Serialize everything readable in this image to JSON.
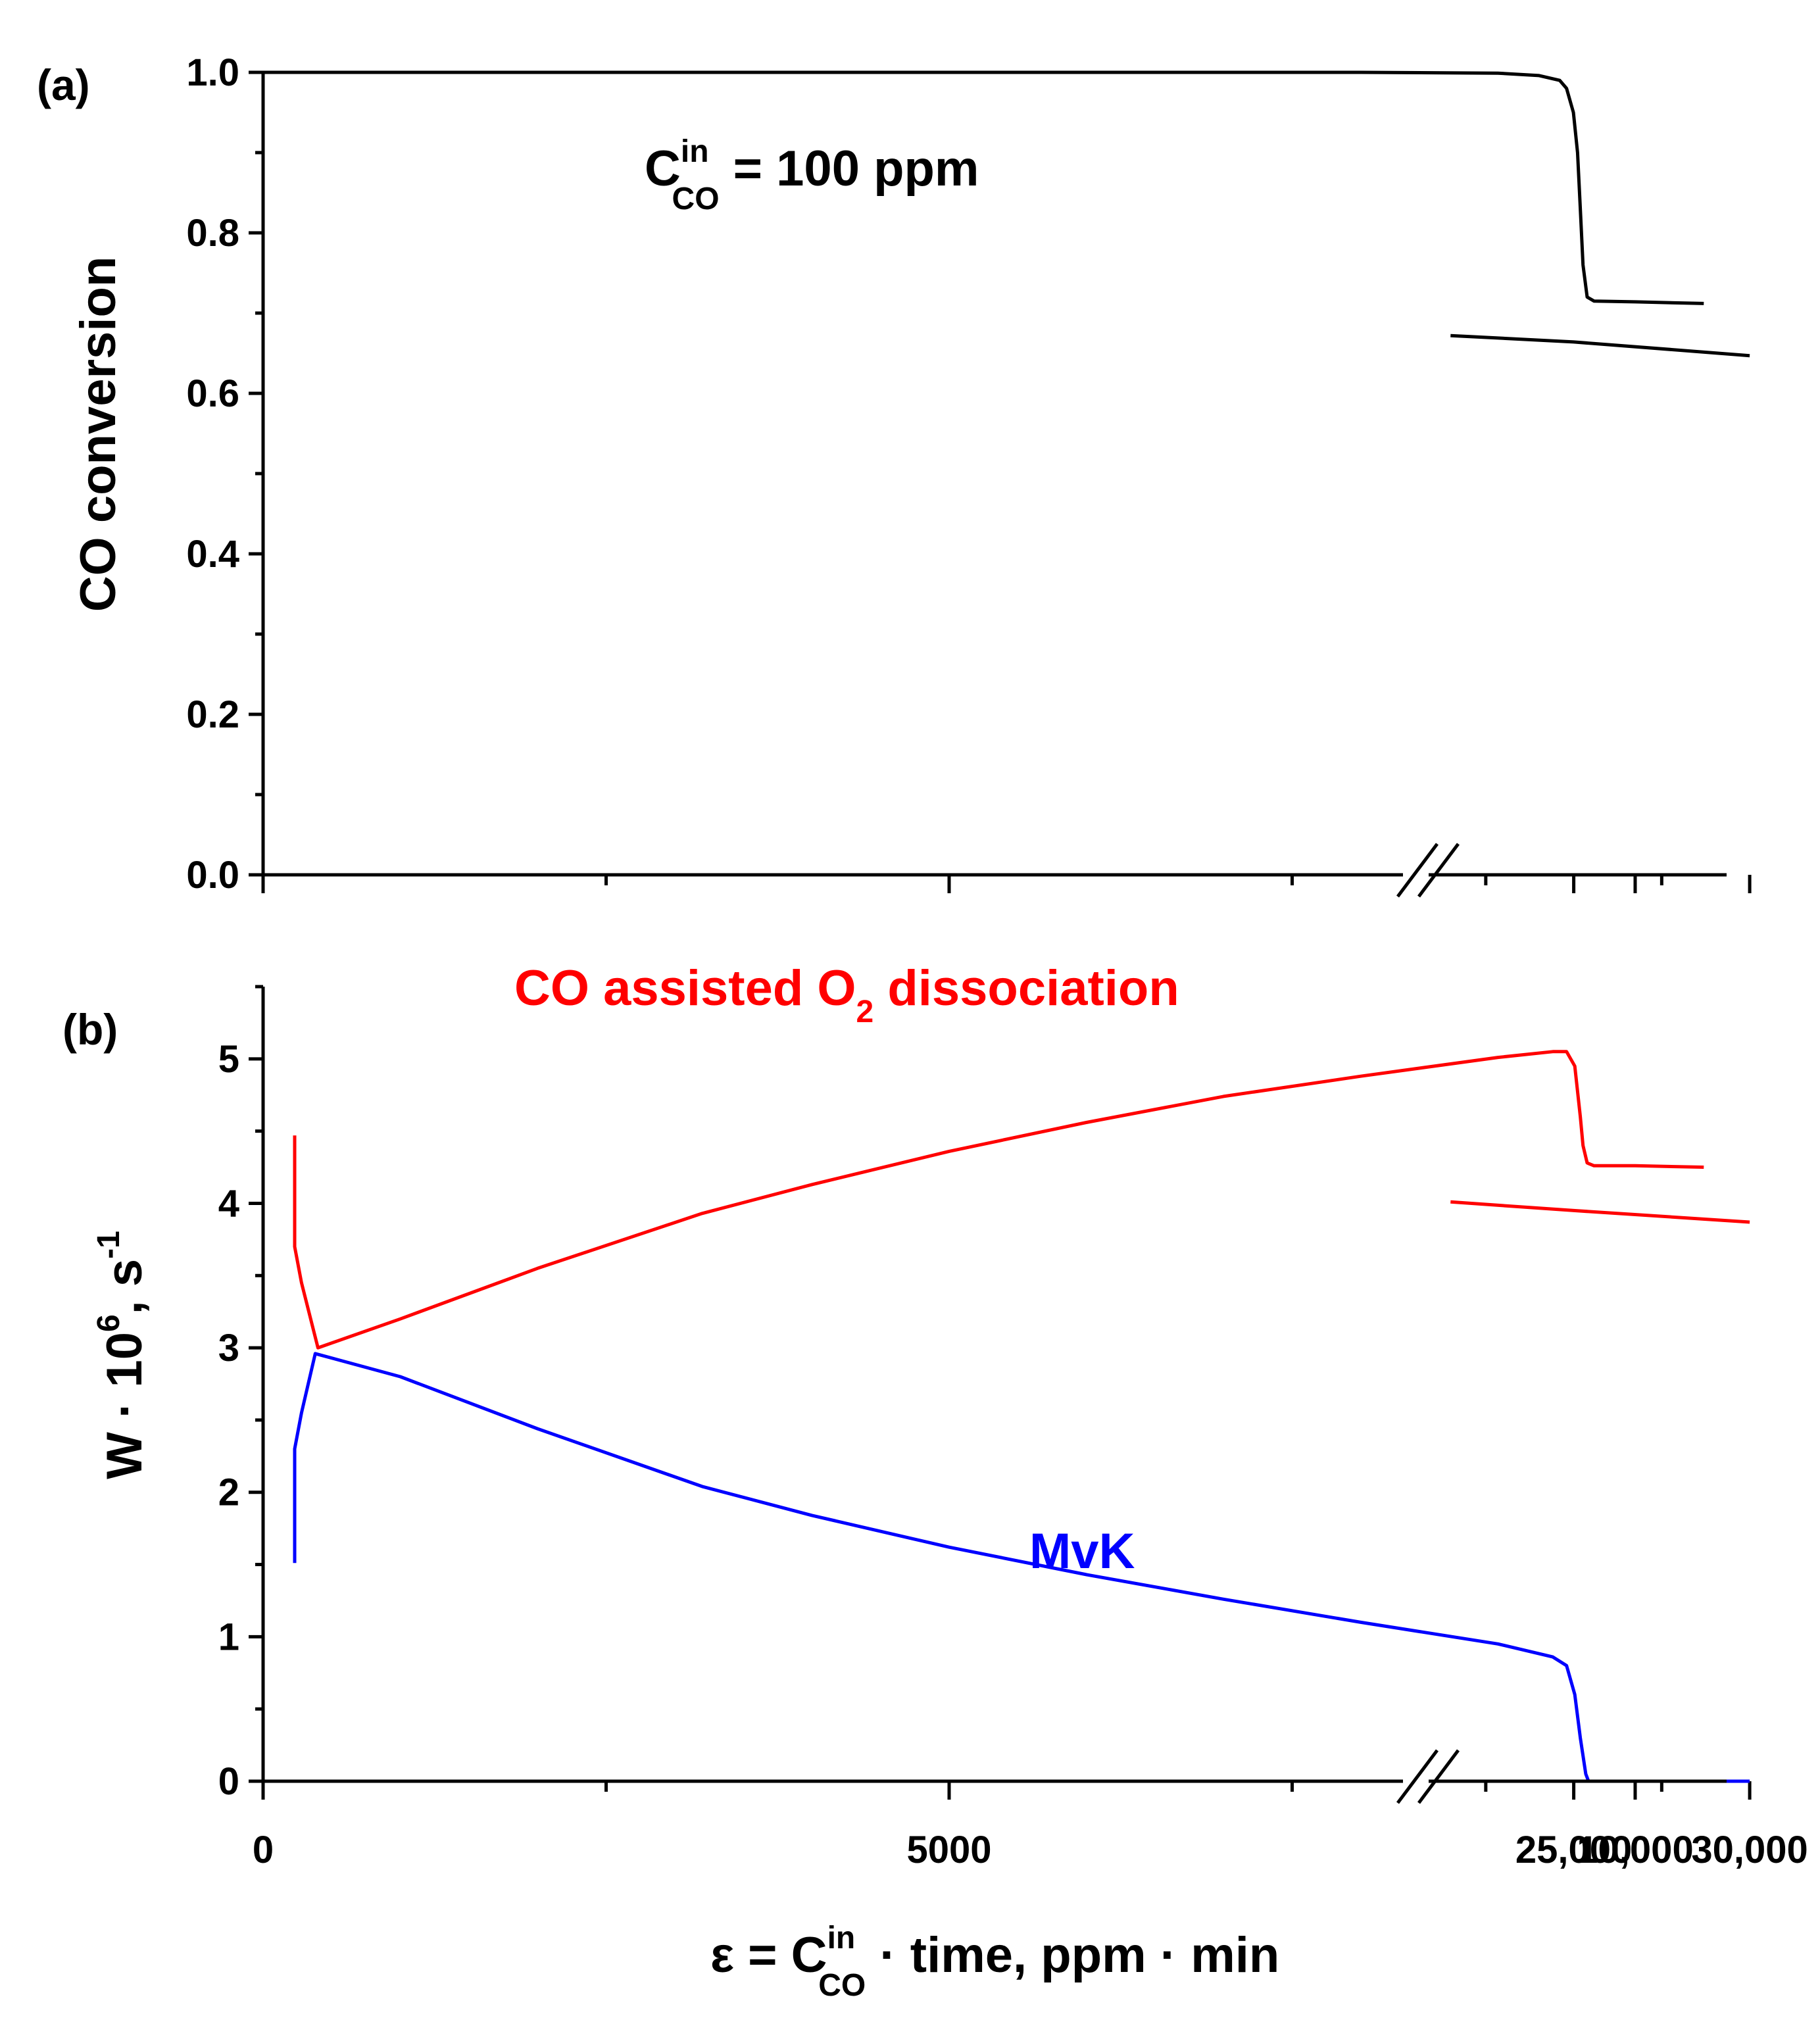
{
  "chart_data": [
    {
      "panel": "(a)",
      "type": "line",
      "ylabel": "CO conversion",
      "ylim": [
        0,
        1.0
      ],
      "yticks": [
        0.0,
        0.2,
        0.4,
        0.6,
        0.8,
        1.0
      ],
      "ytick_labels": [
        "0.0",
        "0.2",
        "0.4",
        "0.6",
        "0.8",
        "1.0"
      ],
      "annotation": {
        "main": "C",
        "sup": "in",
        "sub": "CO",
        "rest": " = 100 ppm"
      },
      "series": [
        {
          "name": "CO conversion",
          "color": "#000000",
          "segment1": [
            [
              0,
              1.0
            ],
            [
              8000,
              1.0
            ],
            [
              9000,
              0.999
            ],
            [
              9300,
              0.996
            ],
            [
              9450,
              0.99
            ],
            [
              9500,
              0.98
            ],
            [
              9550,
              0.95
            ],
            [
              9580,
              0.9
            ],
            [
              9600,
              0.83
            ],
            [
              9620,
              0.76
            ],
            [
              9650,
              0.72
            ],
            [
              9700,
              0.715
            ],
            [
              10000,
              0.714
            ],
            [
              10500,
              0.712
            ]
          ],
          "segment2": [
            [
              21500,
              0.672
            ],
            [
              25000,
              0.664
            ],
            [
              30000,
              0.647
            ]
          ]
        }
      ]
    },
    {
      "panel": "(b)",
      "type": "line",
      "ylabel": "W · 10⁶, s⁻¹",
      "ylabel_parts": {
        "base": "W · 10",
        "exp": "6",
        "mid": ", s",
        "exp2": "-1"
      },
      "ylim": [
        0,
        5.5
      ],
      "yticks": [
        0,
        1,
        2,
        3,
        4,
        5
      ],
      "ytick_labels": [
        "0",
        "1",
        "2",
        "3",
        "4",
        "5"
      ],
      "annotations": [
        {
          "text": "CO assisted O",
          "sub": "2",
          "rest": " dissociation",
          "color": "#ff0000"
        },
        {
          "text": "MvK",
          "color": "#0000ff"
        }
      ],
      "series": [
        {
          "name": "CO assisted O2 dissociation",
          "color": "#ff0000",
          "segment1": [
            [
              230,
              4.47
            ],
            [
              230,
              3.7
            ],
            [
              280,
              3.45
            ],
            [
              400,
              3.0
            ],
            [
              1000,
              3.2
            ],
            [
              2000,
              3.55
            ],
            [
              3200,
              3.93
            ],
            [
              4000,
              4.13
            ],
            [
              5000,
              4.36
            ],
            [
              6000,
              4.56
            ],
            [
              7000,
              4.74
            ],
            [
              8000,
              4.88
            ],
            [
              9000,
              5.01
            ],
            [
              9400,
              5.05
            ],
            [
              9500,
              5.05
            ],
            [
              9560,
              4.95
            ],
            [
              9600,
              4.6
            ],
            [
              9620,
              4.4
            ],
            [
              9650,
              4.28
            ],
            [
              9700,
              4.26
            ],
            [
              10000,
              4.26
            ],
            [
              10500,
              4.25
            ]
          ],
          "segment2": [
            [
              21500,
              4.01
            ],
            [
              25000,
              3.95
            ],
            [
              30000,
              3.87
            ]
          ]
        },
        {
          "name": "MvK",
          "color": "#0000ff",
          "segment1": [
            [
              230,
              1.51
            ],
            [
              230,
              2.3
            ],
            [
              280,
              2.55
            ],
            [
              380,
              2.96
            ],
            [
              1000,
              2.8
            ],
            [
              2000,
              2.44
            ],
            [
              3200,
              2.04
            ],
            [
              4000,
              1.84
            ],
            [
              5000,
              1.62
            ],
            [
              6000,
              1.43
            ],
            [
              7000,
              1.26
            ],
            [
              8000,
              1.1
            ],
            [
              9000,
              0.95
            ],
            [
              9400,
              0.86
            ],
            [
              9500,
              0.8
            ],
            [
              9560,
              0.6
            ],
            [
              9600,
              0.3
            ],
            [
              9640,
              0.05
            ],
            [
              9660,
              0.0
            ],
            [
              10500,
              0.0
            ]
          ],
          "segment2": [
            [
              21500,
              0.0
            ],
            [
              30000,
              0.0
            ]
          ]
        }
      ]
    }
  ],
  "x_axis": {
    "label": {
      "pre": "ε = C",
      "sup": "in",
      "sub": "CO",
      "post": " · time, ppm · min"
    },
    "break_after": 10600,
    "break_resume": 21400,
    "xtick_labels": [
      "0",
      "5000",
      "10,000",
      "25,000",
      "30,000"
    ],
    "major_ticks_left": [
      0,
      5000,
      10000
    ],
    "minor_ticks_left": [
      2500,
      7500
    ],
    "major_ticks_right": [
      25000,
      30000
    ],
    "minor_ticks_right": [
      22500,
      27500
    ]
  }
}
